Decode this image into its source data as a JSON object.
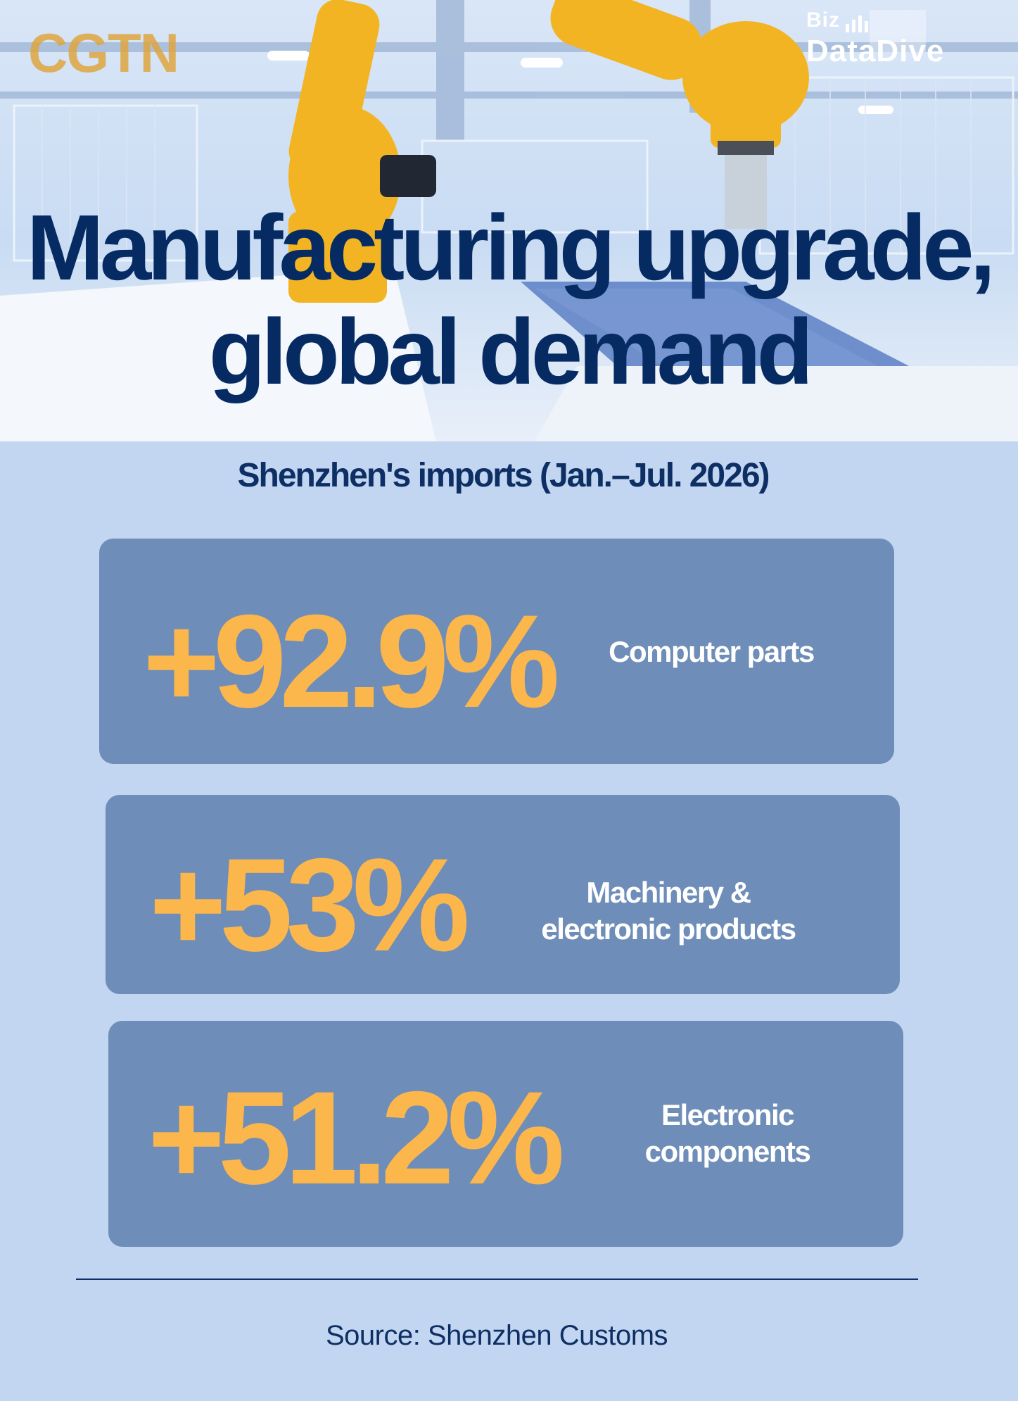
{
  "hero": {
    "logo": "CGTN",
    "brand_top": "Biz",
    "brand_bottom": "DataDive",
    "headline_line1": "Manufacturing upgrade,",
    "headline_line2": "global demand"
  },
  "subtitle": "Shenzhen's imports (Jan.–Jul. 2026)",
  "stats": [
    {
      "value": "+92.9%",
      "label_line1": "Computer parts",
      "label_line2": ""
    },
    {
      "value": "+53%",
      "label_line1": "Machinery &",
      "label_line2": "electronic products"
    },
    {
      "value": "+51.2%",
      "label_line1": "Electronic",
      "label_line2": "components"
    }
  ],
  "source": "Source: Shenzhen Customs",
  "colors": {
    "background": "#c2d6f2",
    "card": "#6e8db8",
    "accent_value": "#fbb64c",
    "headline": "#062b63",
    "robot_arm": "#f2b422"
  },
  "icons": [
    "cgtn-logo",
    "biz-datadive-logo",
    "factory-robot-arm-photo"
  ]
}
